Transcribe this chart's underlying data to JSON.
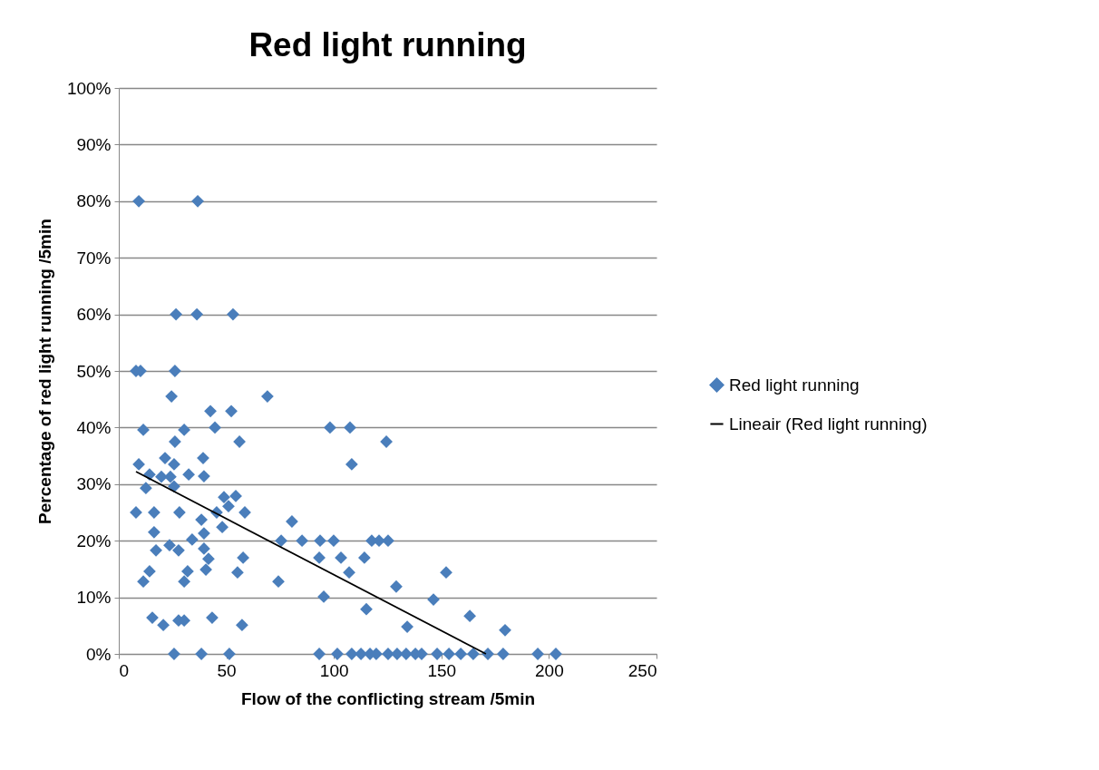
{
  "chart_data": {
    "type": "scatter",
    "title": "Red light running",
    "xlabel": "Flow of the conflicting stream /5min",
    "ylabel": "Percentage of red light running /5min",
    "xlim": [
      0,
      250
    ],
    "xticks": [
      0,
      50,
      100,
      150,
      200,
      250
    ],
    "ylim": [
      0,
      100
    ],
    "yticks": [
      {
        "value": 0,
        "label": "0%"
      },
      {
        "value": 10,
        "label": "10%"
      },
      {
        "value": 20,
        "label": "20%"
      },
      {
        "value": 30,
        "label": "30%"
      },
      {
        "value": 40,
        "label": "40%"
      },
      {
        "value": 50,
        "label": "50%"
      },
      {
        "value": 60,
        "label": "60%"
      },
      {
        "value": 70,
        "label": "70%"
      },
      {
        "value": 80,
        "label": "80%"
      },
      {
        "value": 90,
        "label": "90%"
      },
      {
        "value": 100,
        "label": "100%"
      }
    ],
    "grid": "y",
    "legend": "right",
    "series": [
      {
        "name": "Red light running",
        "color": "#4a7ebb",
        "marker": "diamond",
        "x": [
          9.3,
          36.7,
          26.6,
          36.3,
          53.1,
          8.0,
          10.1,
          26.1,
          24.5,
          69.1,
          42.6,
          52.3,
          11.4,
          30.4,
          44.7,
          98.2,
          107.5,
          26.1,
          56.1,
          124.4,
          9.3,
          21.5,
          25.7,
          39.2,
          108.3,
          14.3,
          19.8,
          32.5,
          39.6,
          12.6,
          24.0,
          25.7,
          8.0,
          16.4,
          28.2,
          16.4,
          38.4,
          39.6,
          48.1,
          17.3,
          23.6,
          27.8,
          34.1,
          39.6,
          41.7,
          14.3,
          11.4,
          32.0,
          30.4,
          40.5,
          15.6,
          20.7,
          27.8,
          30.4,
          43.4,
          25.7,
          38.4,
          51.4,
          54.4,
          48.9,
          51.0,
          58.6,
          57.8,
          55.2,
          57.3,
          45.5,
          75.5,
          80.5,
          85.2,
          93.6,
          99.9,
          117.6,
          121.0,
          125.2,
          93.2,
          103.3,
          114.2,
          107.1,
          152.2,
          74.2,
          129.0,
          95.3,
          146.3,
          115.1,
          163.2,
          134.1,
          179.6,
          93.2,
          101.6,
          108.3,
          112.6,
          116.8,
          119.7,
          125.2,
          129.4,
          133.6,
          137.9,
          140.8,
          148.0,
          153.5,
          159.0,
          164.8,
          171.6,
          178.7,
          194.8,
          203.2
        ],
        "values": [
          80,
          80,
          60,
          60,
          60,
          50,
          50,
          50,
          45.5,
          45.5,
          42.9,
          42.9,
          39.6,
          39.6,
          40,
          40,
          40,
          37.5,
          37.5,
          37.5,
          33.5,
          34.6,
          33.5,
          34.6,
          33.5,
          31.7,
          31.3,
          31.7,
          31.4,
          29.3,
          31.3,
          29.6,
          25,
          25,
          25,
          21.5,
          23.7,
          21.3,
          22.4,
          18.3,
          19.2,
          18.3,
          20.2,
          18.6,
          16.8,
          14.6,
          12.8,
          14.6,
          12.8,
          14.9,
          6.4,
          5.1,
          5.9,
          5.9,
          6.4,
          0,
          0,
          0,
          27.9,
          27.7,
          26.1,
          25,
          17,
          14.4,
          5.1,
          25,
          20,
          23.4,
          20,
          20,
          20,
          20,
          20,
          20,
          17,
          17,
          17,
          14.4,
          14.4,
          12.8,
          11.9,
          10.1,
          9.6,
          7.9,
          6.7,
          4.8,
          4.2,
          0,
          0,
          0,
          0,
          0,
          0,
          0,
          0,
          0,
          0,
          0,
          0,
          0,
          0,
          0,
          0,
          0,
          0,
          0
        ]
      },
      {
        "name": "Lineair (Red light running)",
        "color": "#000000",
        "type": "line",
        "marker": "none",
        "x": [
          8.0,
          170.7
        ],
        "values": [
          32.2,
          0
        ]
      }
    ]
  }
}
